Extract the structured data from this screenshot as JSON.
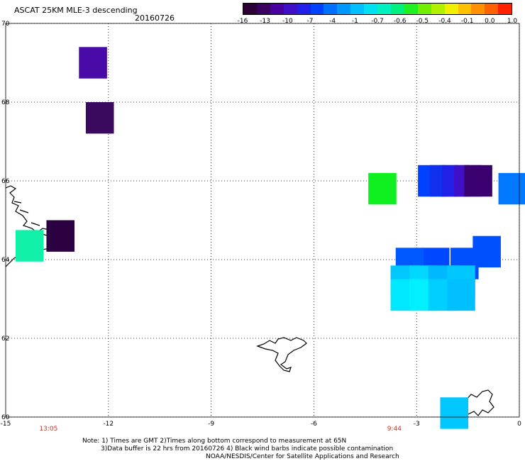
{
  "header": {
    "title": "ASCAT 25KM MLE-3 descending",
    "date": "20160726"
  },
  "colorbar": {
    "colors": [
      "#2a0035",
      "#3a0060",
      "#4a00a0",
      "#4010c8",
      "#2020e8",
      "#0040ff",
      "#0070ff",
      "#0098ff",
      "#00c0ff",
      "#00e0f0",
      "#00f0c0",
      "#00f080",
      "#20f020",
      "#70f000",
      "#b0f000",
      "#f0f000",
      "#ffc000",
      "#ff9000",
      "#ff6000",
      "#ff2000"
    ],
    "labels": [
      "-16",
      "-13",
      "-10",
      "-7",
      "-4",
      "-1",
      "-0.7",
      "-0.6",
      "-0.5",
      "-0.4",
      "-0.1",
      "0.0",
      "1.0"
    ]
  },
  "axes": {
    "lon_ticks": [
      "-15",
      "-12",
      "-9",
      "-6",
      "-3",
      "0"
    ],
    "lat_ticks": [
      "70",
      "68",
      "66",
      "64",
      "62",
      "60"
    ],
    "lon_range": [
      -15,
      0
    ],
    "lat_range": [
      60,
      70
    ]
  },
  "cells": [
    {
      "lon": -12.45,
      "lat": 69.0,
      "color": "#4a0aa8"
    },
    {
      "lon": -12.25,
      "lat": 67.6,
      "color": "#3a0a60"
    },
    {
      "lon": -13.4,
      "lat": 64.6,
      "color": "#2a0040"
    },
    {
      "lon": -14.3,
      "lat": 64.35,
      "color": "#10f0a8"
    },
    {
      "lon": -4.0,
      "lat": 65.8,
      "color": "#10f020"
    },
    {
      "lon": -2.55,
      "lat": 66.0,
      "color": "#0040ff"
    },
    {
      "lon": -2.2,
      "lat": 66.0,
      "color": "#1030f0"
    },
    {
      "lon": -1.85,
      "lat": 66.0,
      "color": "#2020e8"
    },
    {
      "lon": -1.5,
      "lat": 66.0,
      "color": "#4010c8"
    },
    {
      "lon": -1.2,
      "lat": 66.0,
      "color": "#3a0070"
    },
    {
      "lon": -0.2,
      "lat": 65.8,
      "color": "#0078ff"
    },
    {
      "lon": -0.95,
      "lat": 64.2,
      "color": "#0050ff"
    },
    {
      "lon": -1.6,
      "lat": 63.9,
      "color": "#0050ff"
    },
    {
      "lon": -2.45,
      "lat": 63.9,
      "color": "#0048ff"
    },
    {
      "lon": -3.2,
      "lat": 63.9,
      "color": "#0058ff"
    },
    {
      "lon": -3.35,
      "lat": 63.45,
      "color": "#00c8ff"
    },
    {
      "lon": -2.8,
      "lat": 63.45,
      "color": "#00d8ff"
    },
    {
      "lon": -2.25,
      "lat": 63.45,
      "color": "#00b8ff"
    },
    {
      "lon": -1.7,
      "lat": 63.45,
      "color": "#00c8ff"
    },
    {
      "lon": -3.35,
      "lat": 63.1,
      "color": "#00e8ff"
    },
    {
      "lon": -2.8,
      "lat": 63.1,
      "color": "#00f0ff"
    },
    {
      "lon": -2.25,
      "lat": 63.1,
      "color": "#00d0ff"
    },
    {
      "lon": -1.7,
      "lat": 63.1,
      "color": "#00c0ff"
    },
    {
      "lon": -1.9,
      "lat": 60.1,
      "color": "#00c8ff"
    }
  ],
  "times": [
    {
      "label": "13:05",
      "lon": -13.75
    },
    {
      "label": "9:44",
      "lon": -3.65
    }
  ],
  "footer": {
    "line1": "Note: 1) Times are GMT 2)Times along bottom correspond to measurement at 65N",
    "line2": "3)Data buffer is 22 hrs from 20160726 4) Black wind barbs indicate possible contamination",
    "line3": "NOAA/NESDIS/Center for Satellite Applications and Research"
  }
}
